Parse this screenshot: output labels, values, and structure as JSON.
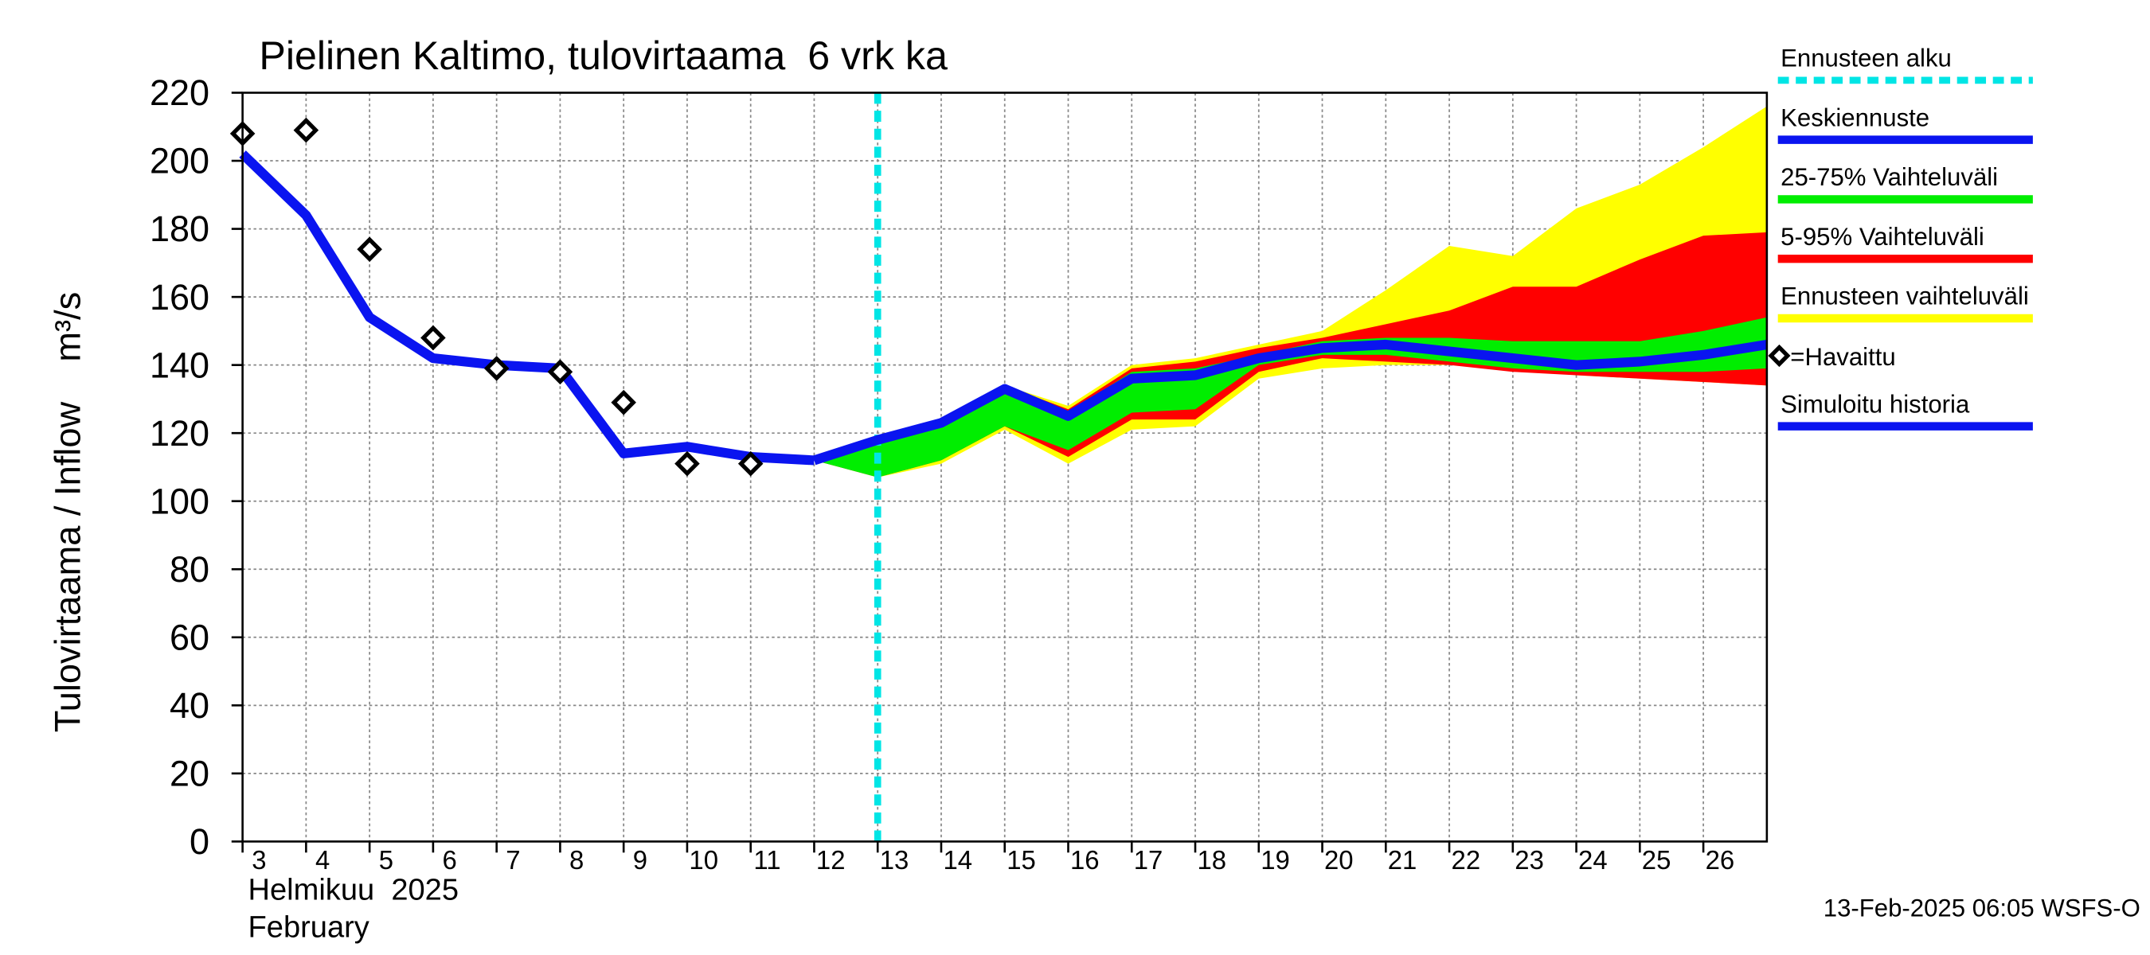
{
  "chart_data": {
    "type": "line",
    "title": "Pielinen Kaltimo, tulovirtaama  6 vrk ka",
    "y_label": "Tulovirtaama / Inflow    m³/s",
    "x_sublabel_1": "Helmikuu  2025",
    "x_sublabel_2": "February",
    "footer": "13-Feb-2025 06:05 WSFS-O",
    "xlim": [
      3,
      27
    ],
    "xticks": [
      3,
      4,
      5,
      6,
      7,
      8,
      9,
      10,
      11,
      12,
      13,
      14,
      15,
      16,
      17,
      18,
      19,
      20,
      21,
      22,
      23,
      24,
      25,
      26
    ],
    "ylim": [
      0,
      220
    ],
    "yticks": [
      0,
      20,
      40,
      60,
      80,
      100,
      120,
      140,
      160,
      180,
      200,
      220
    ],
    "grid": true,
    "legend": "right",
    "series": [
      {
        "name": "Ennusteen alku",
        "kind": "vline",
        "color": "#00e5e5",
        "x": [
          13
        ]
      },
      {
        "name": "Keskiennuste",
        "kind": "line",
        "color": "#0a14f0",
        "x": [
          12,
          13,
          14,
          15,
          16,
          17,
          18,
          19,
          20,
          21,
          22,
          23,
          24,
          25,
          26,
          27
        ],
        "values": [
          112,
          118,
          123,
          133,
          125,
          136,
          137,
          142,
          145,
          146,
          144,
          142,
          140,
          141,
          143,
          146
        ]
      },
      {
        "name": "25-75% Vaihteluväli",
        "kind": "band",
        "color": "#00ee00",
        "x": [
          12,
          13,
          14,
          15,
          16,
          17,
          18,
          19,
          20,
          21,
          22,
          23,
          24,
          25,
          26,
          27
        ],
        "upper": [
          112,
          119,
          124,
          133,
          126,
          138,
          139,
          143,
          147,
          148,
          148,
          147,
          147,
          147,
          150,
          154
        ],
        "lower": [
          112,
          107,
          112,
          122,
          115,
          126,
          127,
          140,
          143,
          143,
          141,
          139,
          138,
          138,
          138,
          139
        ]
      },
      {
        "name": "5-95% Vaihteluväli",
        "kind": "band",
        "color": "#ff0000",
        "x": [
          12,
          13,
          14,
          15,
          16,
          17,
          18,
          19,
          20,
          21,
          22,
          23,
          24,
          25,
          26,
          27
        ],
        "upper": [
          112,
          119,
          124,
          134,
          127,
          139,
          141,
          145,
          148,
          152,
          156,
          163,
          163,
          171,
          178,
          179
        ],
        "lower": [
          112,
          107,
          112,
          122,
          113,
          124,
          124,
          138,
          142,
          141,
          140,
          138,
          137,
          136,
          135,
          134
        ]
      },
      {
        "name": "Ennusteen vaihteluväli",
        "kind": "band",
        "color": "#ffff00",
        "x": [
          12,
          13,
          14,
          15,
          16,
          17,
          18,
          19,
          20,
          21,
          22,
          23,
          24,
          25,
          26,
          27
        ],
        "upper": [
          112,
          119,
          124,
          134,
          128,
          140,
          142,
          146,
          150,
          162,
          175,
          172,
          186,
          193,
          204,
          216
        ],
        "lower": [
          112,
          107,
          111,
          121,
          111,
          121,
          122,
          136,
          139,
          140,
          140,
          139,
          137,
          136,
          135,
          134
        ]
      },
      {
        "name": "=Havaittu",
        "kind": "marker",
        "color": "#000000",
        "x": [
          3,
          4,
          5,
          6,
          7,
          8,
          9,
          10,
          11
        ],
        "values": [
          208,
          209,
          174,
          148,
          139,
          138,
          129,
          111,
          111
        ]
      },
      {
        "name": "Simuloitu historia",
        "kind": "line",
        "color": "#0a14f0",
        "x": [
          3,
          4,
          5,
          6,
          7,
          8,
          9,
          10,
          11,
          12
        ],
        "values": [
          202,
          184,
          154,
          142,
          140,
          139,
          114,
          116,
          113,
          112
        ]
      }
    ]
  }
}
